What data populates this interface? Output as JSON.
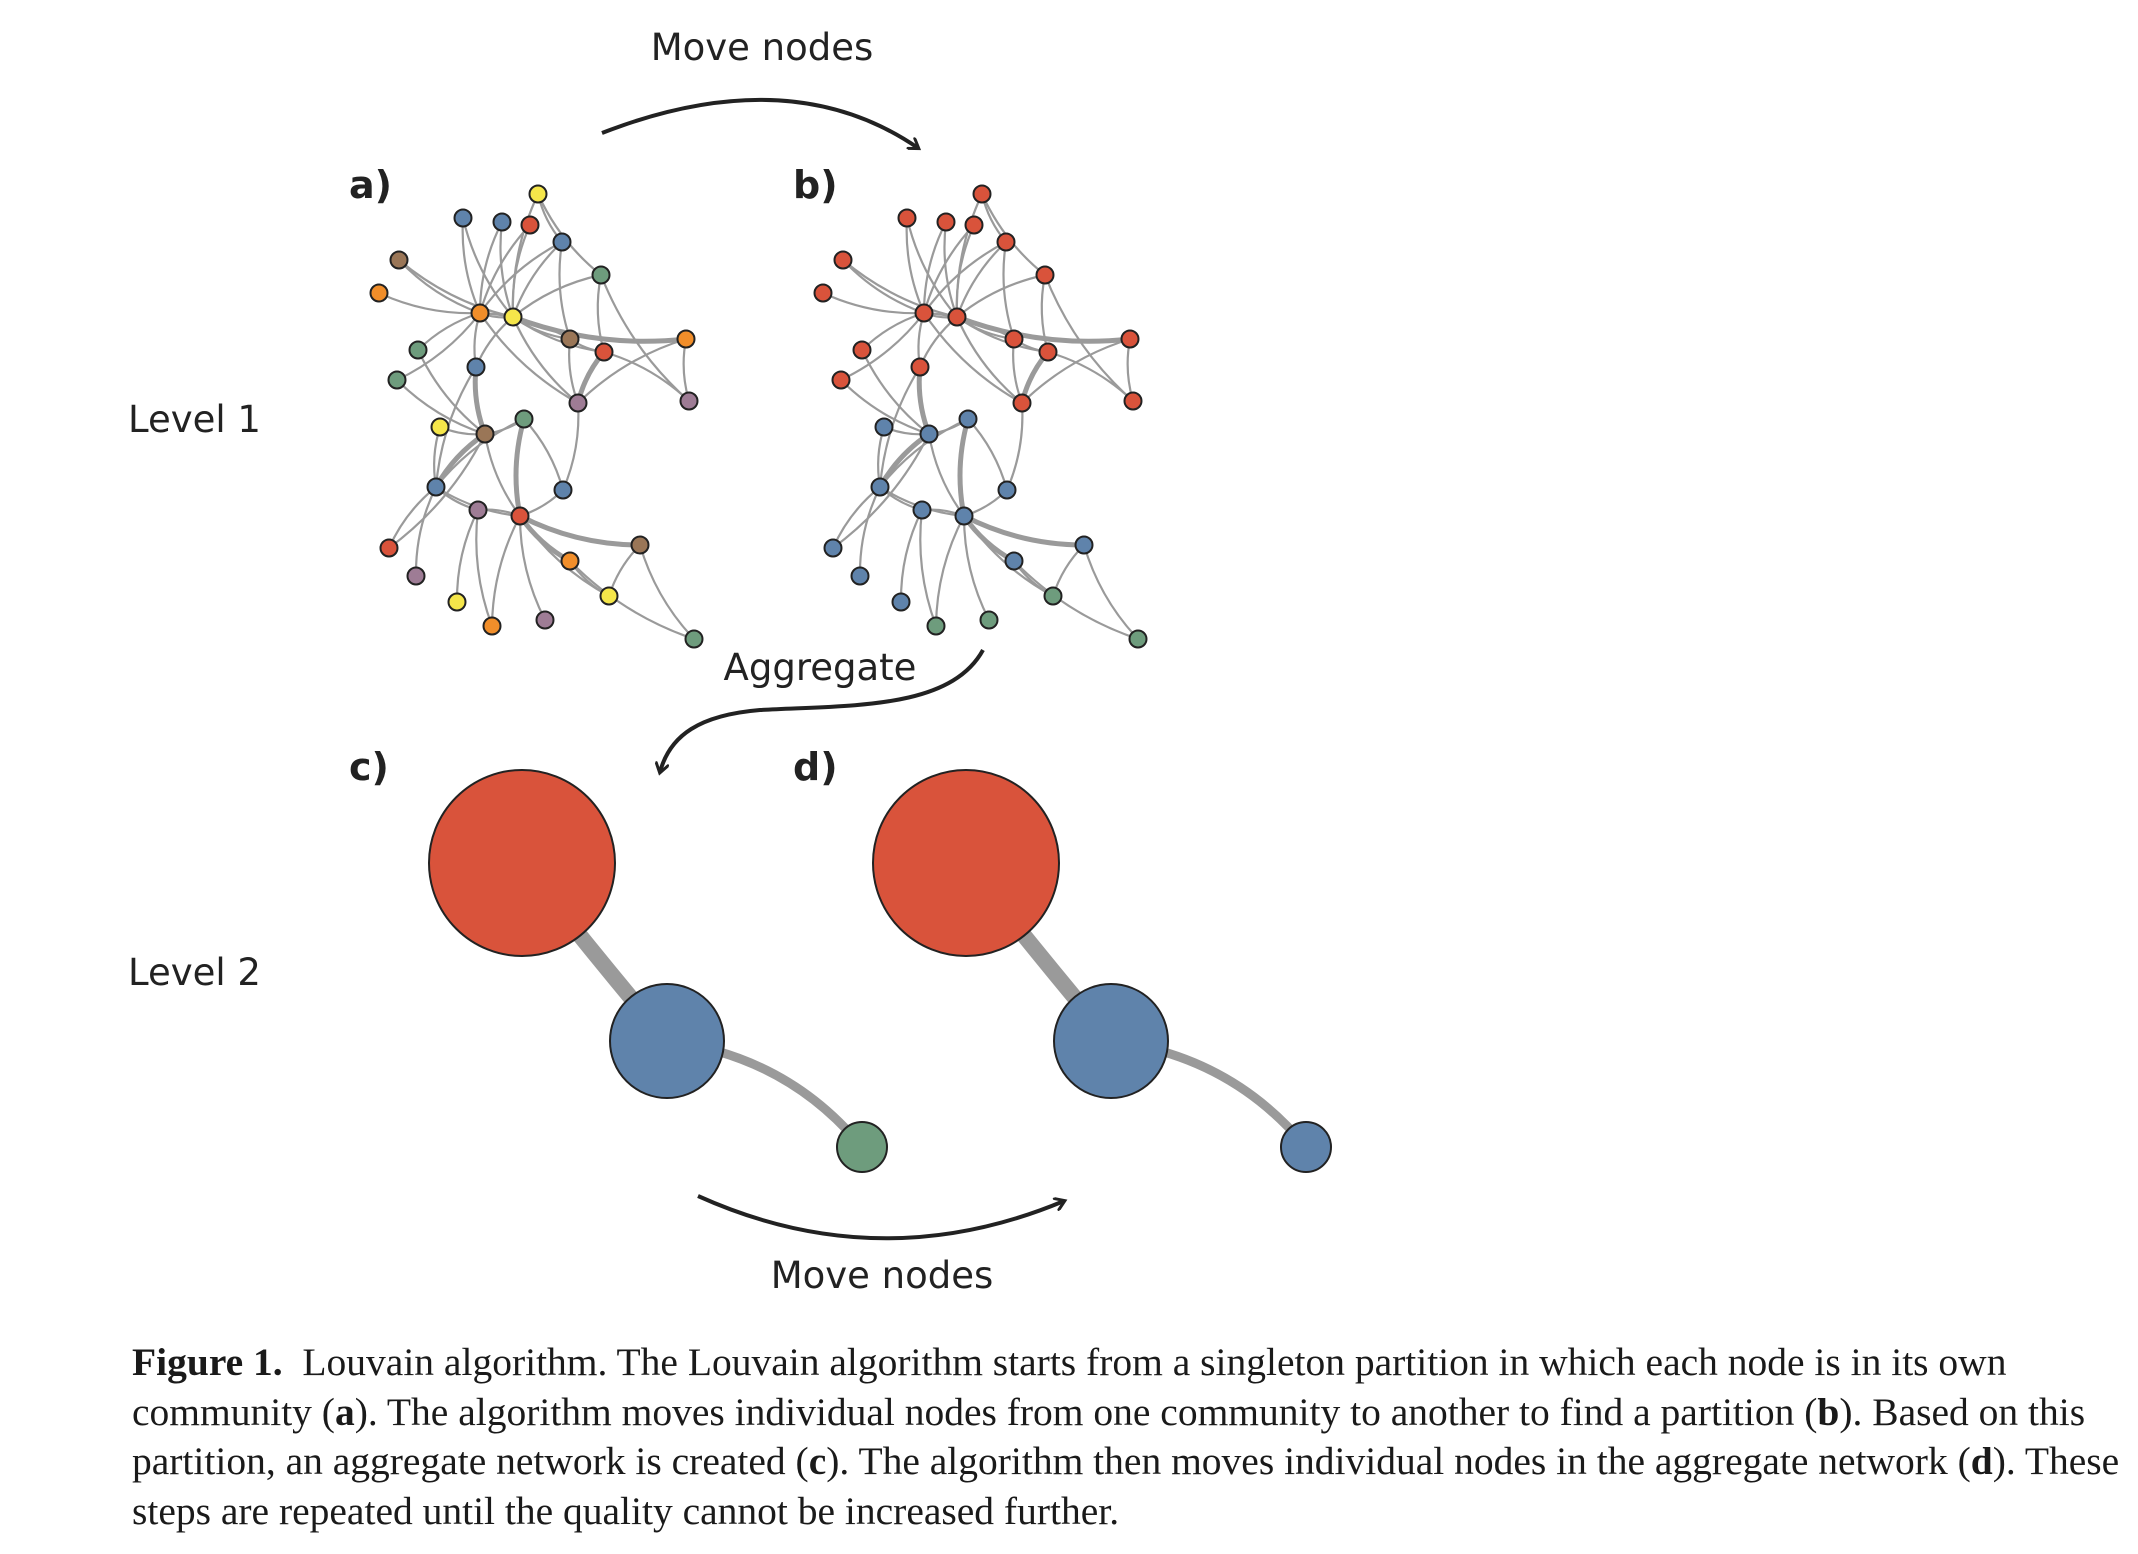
{
  "labels": {
    "move_nodes_top": "Move nodes",
    "move_nodes_bottom": "Move nodes",
    "aggregate": "Aggregate",
    "level1": "Level 1",
    "level2": "Level 2",
    "panel_a": "a)",
    "panel_b": "b)",
    "panel_c": "c)",
    "panel_d": "d)"
  },
  "colors": {
    "red": "#d9533b",
    "blue": "#5f83ab",
    "green": "#6e9c7d",
    "orange": "#f18e2a",
    "yellow": "#f5e64a",
    "brown": "#9a7657",
    "purple": "#9e7c95",
    "edge": "#9a9a9a",
    "outline": "#222222"
  },
  "level1_nodes": {
    "a": [
      "yellow",
      "blue",
      "blue",
      "red",
      "blue",
      "brown",
      "orange",
      "green",
      "orange",
      "yellow",
      "brown",
      "red",
      "orange",
      "green",
      "blue",
      "green",
      "purple",
      "purple",
      "yellow",
      "brown",
      "green",
      "blue",
      "blue",
      "red",
      "purple",
      "red",
      "orange",
      "brown",
      "purple",
      "yellow",
      "yellow",
      "orange",
      "purple",
      "green"
    ],
    "b": [
      "red",
      "red",
      "red",
      "red",
      "red",
      "red",
      "red",
      "red",
      "red",
      "red",
      "red",
      "red",
      "red",
      "red",
      "red",
      "red",
      "red",
      "red",
      "blue",
      "blue",
      "blue",
      "blue",
      "blue",
      "blue",
      "blue",
      "blue",
      "blue",
      "blue",
      "blue",
      "blue",
      "green",
      "green",
      "green",
      "green"
    ]
  },
  "level2_nodes": {
    "c": [
      "red",
      "blue",
      "green"
    ],
    "d": [
      "red",
      "blue",
      "blue"
    ]
  },
  "caption": {
    "title": "Figure 1.",
    "segments": [
      {
        "text": "Louvain algorithm. The Louvain algorithm starts from a singleton partition in which each node is in its own community (",
        "bold": false
      },
      {
        "text": "a",
        "bold": true
      },
      {
        "text": "). The algorithm moves individual nodes from one community to another to find a partition (",
        "bold": false
      },
      {
        "text": "b",
        "bold": true
      },
      {
        "text": "). Based on this partition, an aggregate network is created (",
        "bold": false
      },
      {
        "text": "c",
        "bold": true
      },
      {
        "text": "). The algorithm then moves individual nodes in the aggregate network (",
        "bold": false
      },
      {
        "text": "d",
        "bold": true
      },
      {
        "text": "). These steps are repeated until the quality cannot be increased further.",
        "bold": false
      }
    ]
  }
}
